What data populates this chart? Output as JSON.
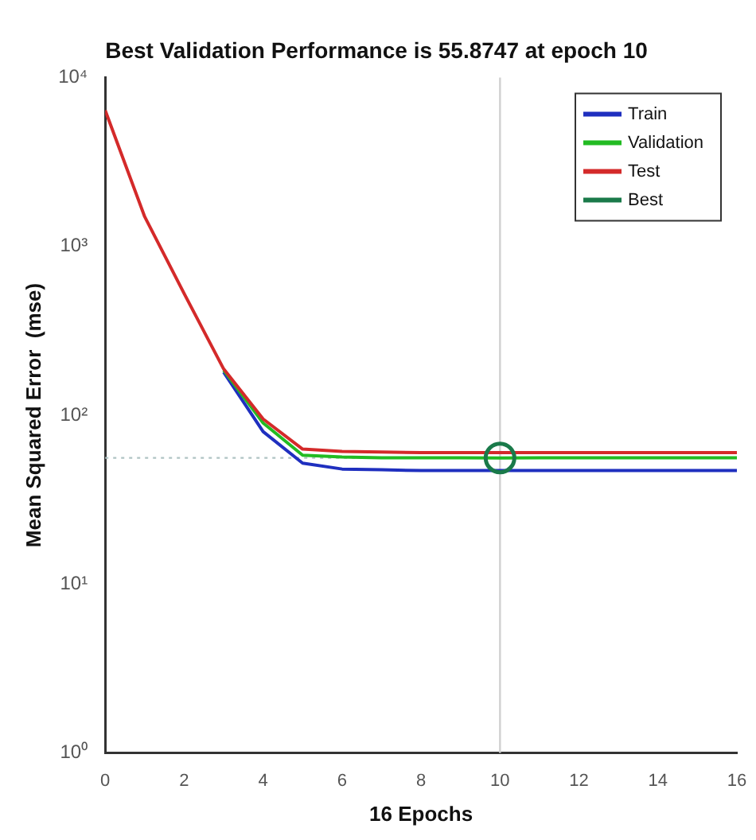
{
  "chart_data": {
    "type": "line",
    "title": "Best Validation Performance is 55.8747 at epoch 10",
    "xlabel": "16 Epochs",
    "ylabel": "Mean Squared Error  (mse)",
    "x": [
      0,
      1,
      2,
      3,
      4,
      5,
      6,
      7,
      8,
      9,
      10,
      11,
      12,
      13,
      14,
      15,
      16
    ],
    "series": [
      {
        "name": "Train",
        "color": "#1f2fbf",
        "values": [
          null,
          null,
          null,
          180,
          80,
          52,
          48,
          47.5,
          47,
          47,
          47,
          47,
          47,
          47,
          47,
          47,
          47
        ]
      },
      {
        "name": "Validation",
        "color": "#22bb22",
        "values": [
          null,
          null,
          null,
          185,
          90,
          58,
          56.5,
          56,
          56,
          55.9,
          55.8747,
          55.9,
          56,
          56,
          56,
          56,
          56
        ]
      },
      {
        "name": "Test",
        "color": "#d42a2a",
        "values": [
          6400,
          1500,
          525,
          188,
          95,
          63,
          61,
          60.5,
          60,
          60,
          60,
          60,
          60,
          60,
          60,
          60,
          60
        ]
      },
      {
        "name": "Best",
        "type": "scatter",
        "marker": "circle",
        "color": "#1a7a4a",
        "x": [
          10
        ],
        "values": [
          55.8747
        ]
      }
    ],
    "ref_lines": [
      {
        "axis": "x",
        "value": 10,
        "color": "#d0d0d0",
        "line_style": "solid"
      },
      {
        "axis": "y",
        "value": 55.8747,
        "color": "#b0c4c4",
        "line_style": "dotted"
      }
    ],
    "log": "y",
    "xlim": [
      0,
      16
    ],
    "xticks": [
      0,
      2,
      4,
      6,
      8,
      10,
      12,
      14,
      16
    ],
    "ylim": [
      1,
      10000
    ],
    "yticks": [
      {
        "value": 1,
        "label": "10⁰"
      },
      {
        "value": 10,
        "label": "10¹"
      },
      {
        "value": 100,
        "label": "10²"
      },
      {
        "value": 1000,
        "label": "10³"
      },
      {
        "value": 10000,
        "label": "10⁴"
      }
    ],
    "grid": false,
    "legend": "top right",
    "marker": "none",
    "line_style": "solid"
  }
}
